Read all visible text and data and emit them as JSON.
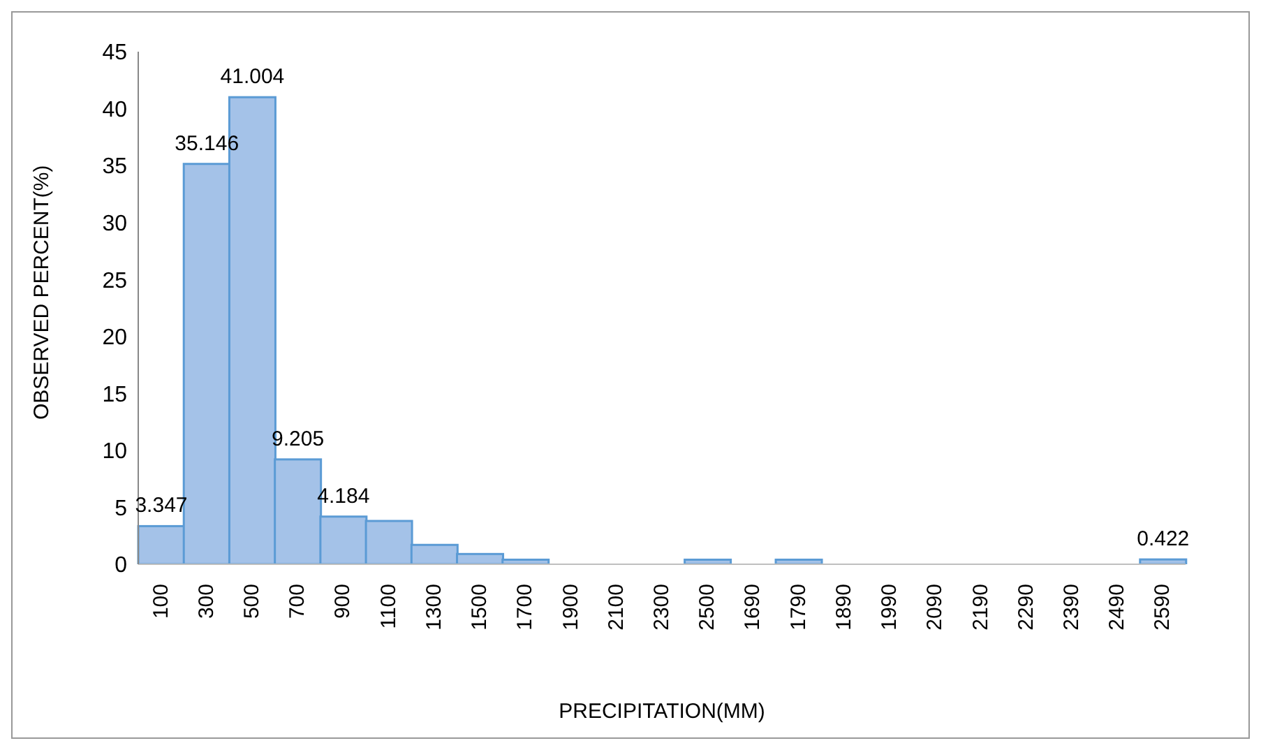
{
  "chart_data": {
    "type": "bar",
    "xlabel": "PRECIPITATION(MM)",
    "ylabel": "OBSERVED PERCENT(%)",
    "categories": [
      "100",
      "300",
      "500",
      "700",
      "900",
      "1100",
      "1300",
      "1500",
      "1700",
      "1900",
      "2100",
      "2300",
      "2500",
      "1690",
      "1790",
      "1890",
      "1990",
      "2090",
      "2190",
      "2290",
      "2390",
      "2490",
      "2590"
    ],
    "values": [
      3.347,
      35.146,
      41.004,
      9.205,
      4.184,
      3.8,
      1.7,
      0.9,
      0.4,
      0,
      0,
      0,
      0.4,
      0,
      0.4,
      0,
      0,
      0,
      0,
      0,
      0,
      0,
      0.422
    ],
    "value_labels": [
      "3.347",
      "35.146",
      "41.004",
      "9.205",
      "4.184",
      null,
      null,
      null,
      null,
      null,
      null,
      null,
      null,
      null,
      null,
      null,
      null,
      null,
      null,
      null,
      null,
      null,
      "0.422"
    ],
    "color": "#a4c2e8",
    "ylim": [
      0,
      45
    ],
    "yticks": [
      0,
      5,
      10,
      15,
      20,
      25,
      30,
      35,
      40,
      45
    ],
    "grid": false,
    "legend": false
  }
}
